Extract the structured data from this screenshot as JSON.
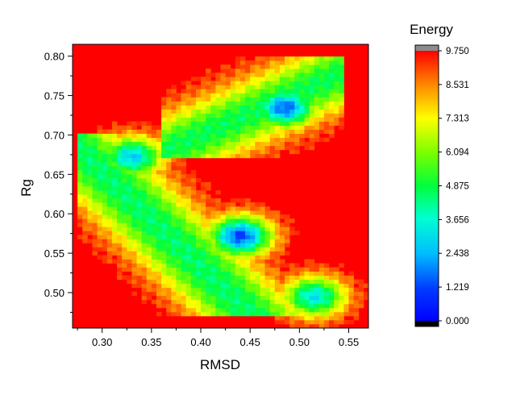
{
  "chart_data": {
    "type": "heatmap",
    "title": "",
    "xlabel": "RMSD",
    "ylabel": "Rg",
    "xlim": [
      0.27,
      0.57
    ],
    "ylim": [
      0.455,
      0.815
    ],
    "x_ticks": [
      "0.30",
      "0.35",
      "0.40",
      "0.45",
      "0.50",
      "0.55"
    ],
    "x_tick_values": [
      0.3,
      0.35,
      0.4,
      0.45,
      0.5,
      0.55
    ],
    "y_ticks": [
      "0.50",
      "0.55",
      "0.60",
      "0.65",
      "0.70",
      "0.75",
      "0.80"
    ],
    "y_tick_values": [
      0.5,
      0.55,
      0.6,
      0.65,
      0.7,
      0.75,
      0.8
    ],
    "colorbar": {
      "title": "Energy",
      "min": 0.0,
      "max": 9.75,
      "ticks": [
        "0.000",
        "1.219",
        "2.438",
        "3.656",
        "4.875",
        "6.094",
        "7.313",
        "8.531",
        "9.750"
      ],
      "tick_values": [
        0.0,
        1.219,
        2.438,
        3.656,
        4.875,
        6.094,
        7.313,
        8.531,
        9.75
      ],
      "under_color": "#000000",
      "over_color": "#8c8c8c"
    },
    "background_value": 9.75,
    "basins": [
      {
        "x": 0.44,
        "y": 0.572,
        "energy": 1.2
      },
      {
        "x": 0.485,
        "y": 0.735,
        "energy": 1.5
      },
      {
        "x": 0.33,
        "y": 0.672,
        "energy": 2.8
      },
      {
        "x": 0.515,
        "y": 0.495,
        "energy": 3.2
      }
    ],
    "colors": {
      "background": "#ff0000",
      "contour_lines": "#000000"
    }
  }
}
